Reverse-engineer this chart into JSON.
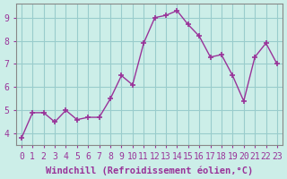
{
  "x": [
    0,
    1,
    2,
    3,
    4,
    5,
    6,
    7,
    8,
    9,
    10,
    11,
    12,
    13,
    14,
    15,
    16,
    17,
    18,
    19,
    20,
    21,
    22,
    23
  ],
  "y": [
    3.8,
    4.9,
    4.9,
    4.5,
    5.0,
    4.6,
    4.7,
    4.7,
    5.5,
    6.5,
    6.1,
    7.9,
    9.0,
    9.1,
    9.3,
    8.7,
    8.2,
    7.3,
    7.4,
    6.5,
    5.4,
    7.3,
    7.9,
    7.0
  ],
  "line_color": "#993399",
  "marker": "+",
  "marker_size": 5,
  "marker_linewidth": 1.2,
  "line_width": 1.0,
  "bg_color": "#cceee8",
  "grid_color": "#99cccc",
  "xlabel": "Windchill (Refroidissement éolien,°C)",
  "xlabel_fontsize": 7.5,
  "tick_fontsize": 7,
  "ylim": [
    3.5,
    9.6
  ],
  "xlim": [
    -0.5,
    23.5
  ],
  "yticks": [
    4,
    5,
    6,
    7,
    8,
    9
  ],
  "xticks": [
    0,
    1,
    2,
    3,
    4,
    5,
    6,
    7,
    8,
    9,
    10,
    11,
    12,
    13,
    14,
    15,
    16,
    17,
    18,
    19,
    20,
    21,
    22,
    23
  ]
}
